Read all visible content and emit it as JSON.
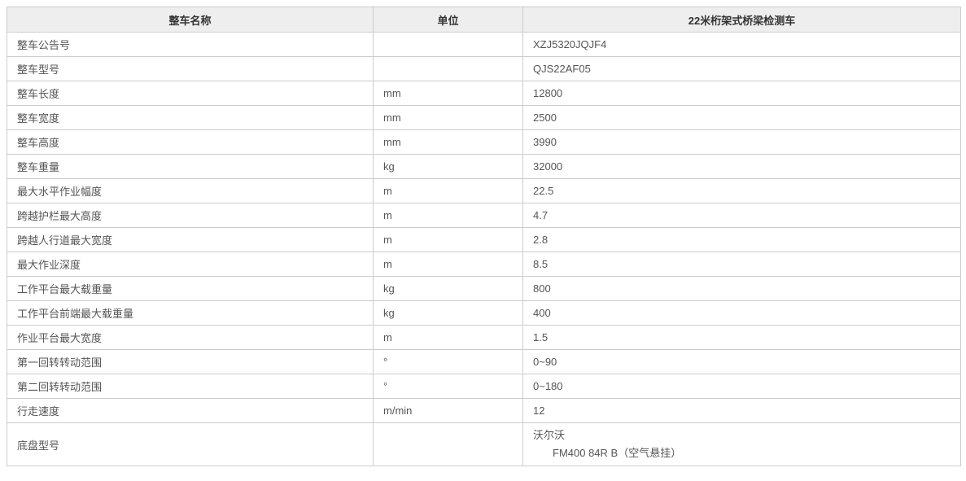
{
  "colors": {
    "header_bg": "#eeeeee",
    "border": "#cccccc",
    "header_text": "#333333",
    "cell_text": "#555555"
  },
  "table": {
    "header": {
      "name": "整车名称",
      "unit": "单位",
      "model": "22米桁架式桥梁检测车"
    },
    "rows": [
      {
        "name": "整车公告号",
        "unit": "",
        "value": "XZJ5320JQJF4"
      },
      {
        "name": "整车型号",
        "unit": "",
        "value": "QJS22AF05"
      },
      {
        "name": "整车长度",
        "unit": "mm",
        "value": "12800"
      },
      {
        "name": "整车宽度",
        "unit": "mm",
        "value": "2500"
      },
      {
        "name": "整车高度",
        "unit": "mm",
        "value": "3990"
      },
      {
        "name": "整车重量",
        "unit": "kg",
        "value": "32000"
      },
      {
        "name": "最大水平作业幅度",
        "unit": "m",
        "value": "22.5"
      },
      {
        "name": "跨越护栏最大高度",
        "unit": "m",
        "value": "4.7"
      },
      {
        "name": "跨越人行道最大宽度",
        "unit": "m",
        "value": "2.8"
      },
      {
        "name": "最大作业深度",
        "unit": "m",
        "value": "8.5"
      },
      {
        "name": "工作平台最大载重量",
        "unit": "kg",
        "value": "800"
      },
      {
        "name": "工作平台前端最大载重量",
        "unit": "kg",
        "value": "400"
      },
      {
        "name": "作业平台最大宽度",
        "unit": "m",
        "value": "1.5"
      },
      {
        "name": "第一回转转动范围",
        "unit": "°",
        "value": "0~90"
      },
      {
        "name": "第二回转转动范围",
        "unit": "°",
        "value": "0~180"
      },
      {
        "name": "行走速度",
        "unit": "m/min",
        "value": "12"
      },
      {
        "name": "底盘型号",
        "unit": "",
        "value_lines": [
          "沃尔沃",
          "FM400 84R B（空气悬挂）"
        ]
      }
    ]
  }
}
